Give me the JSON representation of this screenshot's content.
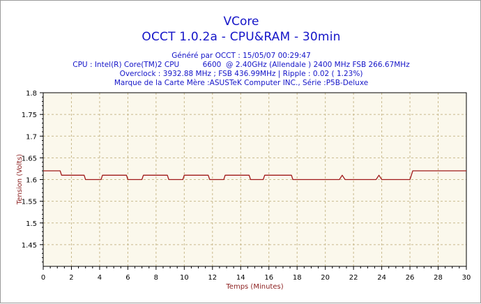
{
  "header": {
    "title": "VCore",
    "subtitle": "OCCT 1.0.2a - CPU&RAM -  30min",
    "info_lines": [
      "Généré par OCCT : 15/05/07 00:29:47",
      "CPU : Intel(R) Core(TM)2 CPU          6600  @ 2.40GHz (Allendale ) 2400 MHz FSB 266.67MHz",
      "Overclock : 3932.88 MHz ; FSB 436.99MHz | Ripple : 0.02 ( 1.23%)",
      "Marque de la Carte Mère :ASUSTeK Computer INC., Série :P5B-Deluxe"
    ]
  },
  "chart_data": {
    "type": "line",
    "title": "VCore",
    "xlabel": "Temps (Minutes)",
    "ylabel": "Tension (Volts)",
    "xlim": [
      0,
      30
    ],
    "ylim": [
      1.4,
      1.8
    ],
    "x_ticks": [
      0,
      2,
      4,
      6,
      8,
      10,
      12,
      14,
      16,
      18,
      20,
      22,
      24,
      26,
      28,
      30
    ],
    "y_ticks": [
      "1.45",
      "1.5",
      "1.55",
      "1.6",
      "1.65",
      "1.7",
      "1.75",
      "1.8"
    ],
    "grid": true,
    "colors": {
      "line": "#a01818",
      "grid": "#c8b98c",
      "plot_bg": "#fbf8ec",
      "text": "#1414c8"
    },
    "series": [
      {
        "values": [
          [
            0,
            1.62
          ],
          [
            1.2,
            1.62
          ],
          [
            1.3,
            1.61
          ],
          [
            2.9,
            1.61
          ],
          [
            3.0,
            1.6
          ],
          [
            4.1,
            1.6
          ],
          [
            4.2,
            1.61
          ],
          [
            5.9,
            1.61
          ],
          [
            6.0,
            1.6
          ],
          [
            7.0,
            1.6
          ],
          [
            7.1,
            1.61
          ],
          [
            8.8,
            1.61
          ],
          [
            8.9,
            1.6
          ],
          [
            9.9,
            1.6
          ],
          [
            10.0,
            1.61
          ],
          [
            11.7,
            1.61
          ],
          [
            11.8,
            1.6
          ],
          [
            12.8,
            1.6
          ],
          [
            12.9,
            1.61
          ],
          [
            14.6,
            1.61
          ],
          [
            14.7,
            1.6
          ],
          [
            15.6,
            1.6
          ],
          [
            15.7,
            1.61
          ],
          [
            17.6,
            1.61
          ],
          [
            17.7,
            1.6
          ],
          [
            21.0,
            1.6
          ],
          [
            21.2,
            1.61
          ],
          [
            21.4,
            1.6
          ],
          [
            23.6,
            1.6
          ],
          [
            23.8,
            1.61
          ],
          [
            24.0,
            1.6
          ],
          [
            26.0,
            1.6
          ],
          [
            26.2,
            1.62
          ],
          [
            30,
            1.62
          ]
        ]
      }
    ]
  }
}
